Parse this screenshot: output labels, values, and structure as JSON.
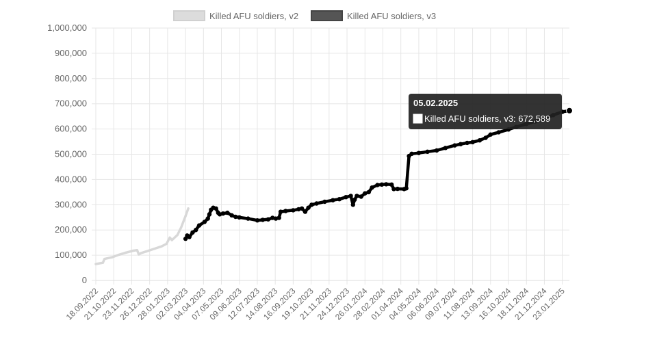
{
  "chart_data": {
    "type": "line",
    "legend_position": "top",
    "grid": true,
    "ylim": [
      0,
      1000000
    ],
    "yticks": [
      "0",
      "100,000",
      "200,000",
      "300,000",
      "400,000",
      "500,000",
      "600,000",
      "700,000",
      "800,000",
      "900,000",
      "1,000,000"
    ],
    "ytick_values": [
      0,
      100000,
      200000,
      300000,
      400000,
      500000,
      600000,
      700000,
      800000,
      900000,
      1000000
    ],
    "x_start": "2022-09-18",
    "x_end": "2025-02-05",
    "xtick_dates": [
      "2022-09-18",
      "2022-10-21",
      "2022-11-23",
      "2022-12-26",
      "2023-01-28",
      "2023-03-02",
      "2023-04-04",
      "2023-05-07",
      "2023-06-09",
      "2023-07-12",
      "2023-08-14",
      "2023-09-16",
      "2023-10-19",
      "2023-11-21",
      "2023-12-24",
      "2024-01-26",
      "2024-02-28",
      "2024-04-01",
      "2024-05-04",
      "2024-06-06",
      "2024-07-09",
      "2024-08-11",
      "2024-09-13",
      "2024-10-16",
      "2024-11-18",
      "2024-12-21",
      "2025-01-23"
    ],
    "xticks": [
      "18.09.2022",
      "21.10.2022",
      "23.11.2022",
      "26.12.2022",
      "28.01.2023",
      "02.03.2023",
      "04.04.2023",
      "07.05.2023",
      "09.06.2023",
      "12.07.2023",
      "14.08.2023",
      "16.09.2023",
      "19.10.2023",
      "21.11.2023",
      "24.12.2023",
      "26.01.2024",
      "28.02.2024",
      "01.04.2024",
      "04.05.2024",
      "06.06.2024",
      "09.07.2024",
      "11.08.2024",
      "13.09.2024",
      "16.10.2024",
      "18.11.2024",
      "21.12.2024",
      "23.01.2025"
    ],
    "series": [
      {
        "name": "Killed AFU soldiers, v2",
        "color": "#dcdcdc",
        "points": [
          [
            "2022-09-18",
            65000
          ],
          [
            "2022-10-01",
            70000
          ],
          [
            "2022-10-04",
            85000
          ],
          [
            "2022-10-18",
            92000
          ],
          [
            "2022-10-28",
            100000
          ],
          [
            "2022-11-12",
            110000
          ],
          [
            "2022-11-26",
            118000
          ],
          [
            "2022-12-03",
            120000
          ],
          [
            "2022-12-06",
            103000
          ],
          [
            "2022-12-10",
            108000
          ],
          [
            "2022-12-20",
            115000
          ],
          [
            "2023-01-03",
            125000
          ],
          [
            "2023-01-17",
            135000
          ],
          [
            "2023-01-26",
            145000
          ],
          [
            "2023-02-01",
            170000
          ],
          [
            "2023-02-05",
            160000
          ],
          [
            "2023-02-15",
            180000
          ],
          [
            "2023-02-22",
            210000
          ],
          [
            "2023-03-02",
            255000
          ],
          [
            "2023-03-07",
            285000
          ]
        ]
      },
      {
        "name": "Killed AFU soldiers, v3",
        "color": "#555555",
        "points": [
          [
            "2023-03-02",
            165000
          ],
          [
            "2023-03-05",
            178000
          ],
          [
            "2023-03-09",
            172000
          ],
          [
            "2023-03-15",
            190000
          ],
          [
            "2023-03-21",
            200000
          ],
          [
            "2023-03-27",
            218000
          ],
          [
            "2023-04-06",
            232000
          ],
          [
            "2023-04-12",
            245000
          ],
          [
            "2023-04-15",
            262000
          ],
          [
            "2023-04-18",
            280000
          ],
          [
            "2023-04-22",
            288000
          ],
          [
            "2023-04-27",
            285000
          ],
          [
            "2023-05-01",
            268000
          ],
          [
            "2023-05-04",
            262000
          ],
          [
            "2023-05-10",
            265000
          ],
          [
            "2023-05-18",
            268000
          ],
          [
            "2023-05-26",
            258000
          ],
          [
            "2023-06-02",
            252000
          ],
          [
            "2023-06-09",
            250000
          ],
          [
            "2023-06-25",
            245000
          ],
          [
            "2023-07-12",
            238000
          ],
          [
            "2023-07-22",
            240000
          ],
          [
            "2023-08-01",
            242000
          ],
          [
            "2023-08-09",
            248000
          ],
          [
            "2023-08-15",
            245000
          ],
          [
            "2023-08-21",
            248000
          ],
          [
            "2023-08-24",
            272000
          ],
          [
            "2023-09-02",
            275000
          ],
          [
            "2023-09-16",
            278000
          ],
          [
            "2023-09-26",
            282000
          ],
          [
            "2023-10-02",
            285000
          ],
          [
            "2023-10-08",
            272000
          ],
          [
            "2023-10-14",
            288000
          ],
          [
            "2023-10-20",
            300000
          ],
          [
            "2023-10-29",
            305000
          ],
          [
            "2023-11-13",
            312000
          ],
          [
            "2023-11-28",
            318000
          ],
          [
            "2023-12-10",
            322000
          ],
          [
            "2023-12-22",
            330000
          ],
          [
            "2023-12-31",
            335000
          ],
          [
            "2024-01-04",
            300000
          ],
          [
            "2024-01-07",
            320000
          ],
          [
            "2024-01-11",
            335000
          ],
          [
            "2024-01-19",
            332000
          ],
          [
            "2024-01-26",
            345000
          ],
          [
            "2024-02-02",
            350000
          ],
          [
            "2024-02-08",
            368000
          ],
          [
            "2024-02-18",
            378000
          ],
          [
            "2024-02-26",
            380000
          ],
          [
            "2024-03-05",
            381000
          ],
          [
            "2024-03-15",
            380000
          ],
          [
            "2024-03-19",
            362000
          ],
          [
            "2024-03-26",
            363000
          ],
          [
            "2024-04-07",
            362000
          ],
          [
            "2024-04-11",
            365000
          ],
          [
            "2024-04-16",
            493000
          ],
          [
            "2024-04-21",
            502000
          ],
          [
            "2024-05-04",
            505000
          ],
          [
            "2024-05-20",
            510000
          ],
          [
            "2024-06-06",
            515000
          ],
          [
            "2024-06-22",
            525000
          ],
          [
            "2024-07-09",
            535000
          ],
          [
            "2024-07-20",
            540000
          ],
          [
            "2024-08-01",
            545000
          ],
          [
            "2024-08-11",
            548000
          ],
          [
            "2024-08-24",
            555000
          ],
          [
            "2024-09-04",
            565000
          ],
          [
            "2024-09-13",
            578000
          ],
          [
            "2024-09-28",
            587000
          ],
          [
            "2024-10-16",
            598000
          ],
          [
            "2024-10-30",
            608000
          ],
          [
            "2024-11-18",
            620000
          ],
          [
            "2024-12-04",
            630000
          ],
          [
            "2024-12-21",
            640000
          ],
          [
            "2025-01-06",
            655000
          ],
          [
            "2025-01-23",
            668000
          ],
          [
            "2025-02-05",
            672589
          ]
        ]
      }
    ],
    "tooltip": {
      "title": "05.02.2025",
      "label": "Killed AFU soldiers, v3: 672,589",
      "date": "2025-02-05",
      "value": 672589
    }
  }
}
